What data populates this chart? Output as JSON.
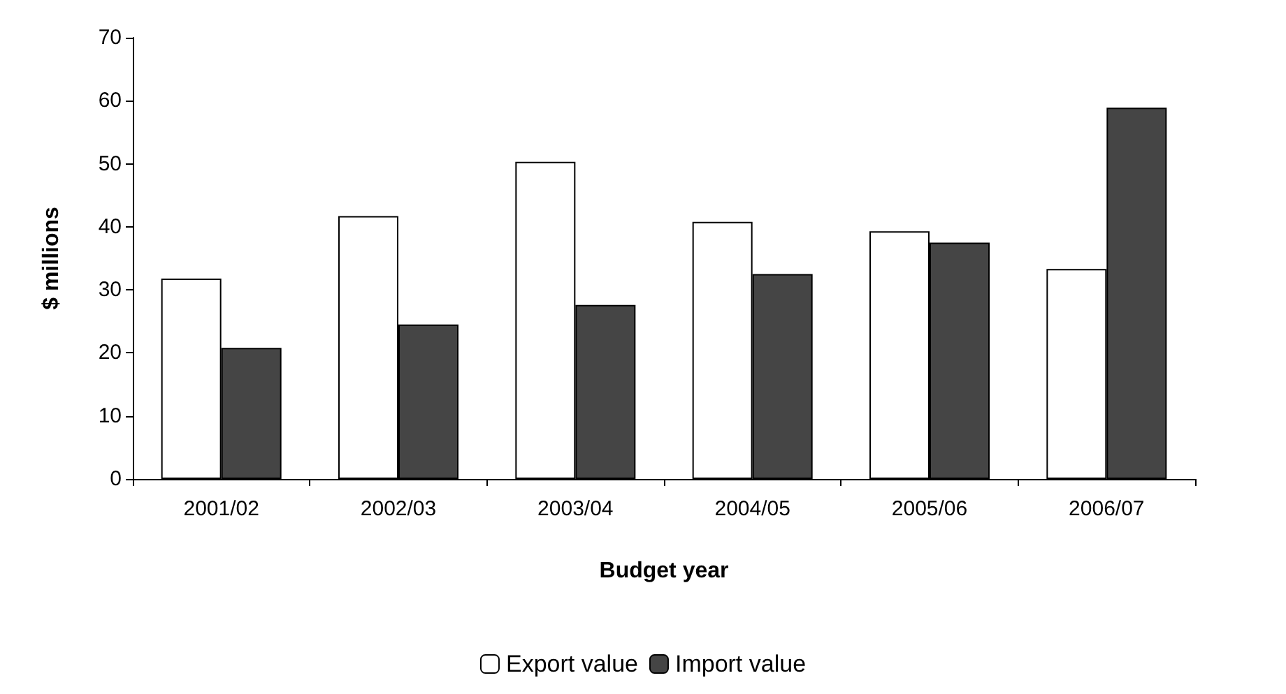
{
  "chart_data": {
    "type": "bar",
    "xlabel": "Budget year",
    "ylabel": "$ millions",
    "categories": [
      "2001/02",
      "2002/03",
      "2003/04",
      "2004/05",
      "2005/06",
      "2006/07"
    ],
    "series": [
      {
        "name": "Export value",
        "color": "#ffffff",
        "values": [
          31.8,
          41.7,
          50.3,
          40.8,
          39.3,
          33.3
        ]
      },
      {
        "name": "Import value",
        "color": "#454545",
        "values": [
          20.8,
          24.5,
          27.6,
          32.5,
          37.5,
          58.9
        ]
      }
    ],
    "ylim": [
      0,
      70
    ],
    "yticks": [
      0,
      10,
      20,
      30,
      40,
      50,
      60,
      70
    ],
    "grid": false,
    "legend": "bottom"
  }
}
